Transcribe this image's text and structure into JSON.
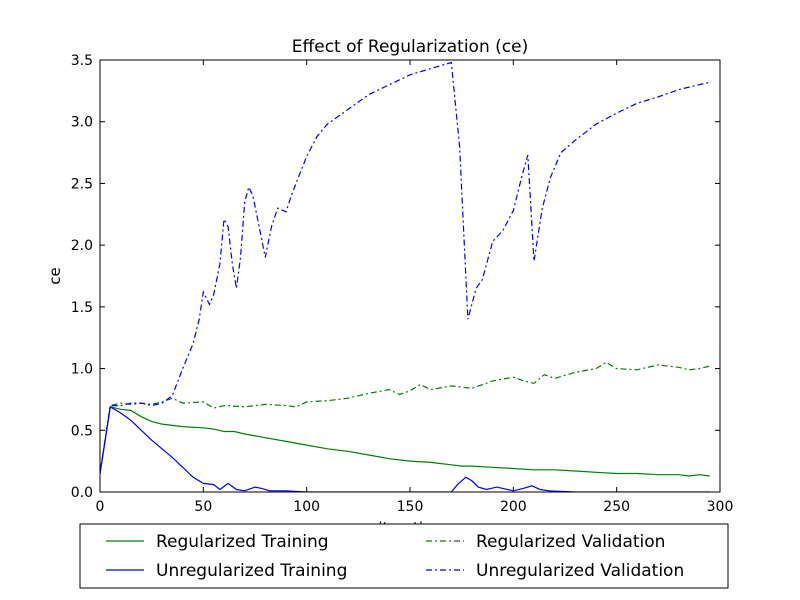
{
  "chart_data": {
    "type": "line",
    "title": "Effect of Regularization (ce)",
    "xlabel": "iteration",
    "ylabel": "ce",
    "xlim": [
      0,
      300
    ],
    "ylim": [
      0,
      3.5
    ],
    "xticks": [
      "0",
      "50",
      "100",
      "150",
      "200",
      "250",
      "300"
    ],
    "yticks": [
      "0.0",
      "0.5",
      "1.0",
      "1.5",
      "2.0",
      "2.5",
      "3.0",
      "3.5"
    ],
    "grid": false,
    "legend_position": "below",
    "series": [
      {
        "name": "Regularized Training",
        "color": "#008000",
        "style": "solid",
        "x": [
          0,
          5,
          10,
          15,
          20,
          25,
          30,
          40,
          50,
          55,
          60,
          65,
          70,
          80,
          90,
          100,
          110,
          120,
          130,
          140,
          150,
          160,
          170,
          175,
          180,
          190,
          200,
          210,
          220,
          230,
          240,
          250,
          260,
          270,
          280,
          285,
          290,
          295
        ],
        "y": [
          0.15,
          0.69,
          0.67,
          0.66,
          0.61,
          0.57,
          0.55,
          0.53,
          0.52,
          0.51,
          0.49,
          0.49,
          0.47,
          0.44,
          0.41,
          0.38,
          0.35,
          0.33,
          0.3,
          0.27,
          0.25,
          0.24,
          0.22,
          0.21,
          0.21,
          0.2,
          0.19,
          0.18,
          0.18,
          0.17,
          0.16,
          0.15,
          0.15,
          0.14,
          0.14,
          0.13,
          0.14,
          0.13
        ]
      },
      {
        "name": "Unregularized Training",
        "color": "#0000ff",
        "style": "solid",
        "x": [
          0,
          5,
          10,
          15,
          20,
          25,
          30,
          35,
          40,
          45,
          50,
          55,
          58,
          62,
          66,
          70,
          75,
          78,
          82,
          90,
          100,
          120,
          150,
          170,
          173,
          177,
          180,
          183,
          187,
          192,
          200,
          205,
          209,
          213,
          217,
          230,
          260,
          295
        ],
        "y": [
          0.15,
          0.69,
          0.64,
          0.58,
          0.5,
          0.42,
          0.35,
          0.28,
          0.2,
          0.12,
          0.07,
          0.06,
          0.02,
          0.07,
          0.02,
          0.01,
          0.04,
          0.03,
          0.01,
          0.01,
          0.0,
          0.0,
          0.0,
          0.0,
          0.06,
          0.12,
          0.09,
          0.04,
          0.02,
          0.04,
          0.01,
          0.03,
          0.05,
          0.02,
          0.01,
          0.0,
          0.0,
          0.0
        ]
      },
      {
        "name": "Regularized Validation",
        "color": "#008000",
        "style": "dashdot",
        "x": [
          0,
          5,
          10,
          15,
          20,
          25,
          30,
          35,
          40,
          50,
          55,
          60,
          70,
          80,
          90,
          95,
          100,
          110,
          120,
          130,
          140,
          145,
          150,
          155,
          160,
          170,
          180,
          190,
          200,
          205,
          210,
          215,
          220,
          230,
          240,
          245,
          250,
          260,
          270,
          280,
          285,
          290,
          295
        ],
        "y": [
          0.15,
          0.7,
          0.72,
          0.71,
          0.72,
          0.71,
          0.73,
          0.76,
          0.72,
          0.73,
          0.68,
          0.7,
          0.69,
          0.71,
          0.7,
          0.69,
          0.73,
          0.74,
          0.76,
          0.8,
          0.83,
          0.79,
          0.82,
          0.87,
          0.83,
          0.86,
          0.84,
          0.9,
          0.93,
          0.9,
          0.88,
          0.95,
          0.92,
          0.97,
          1.0,
          1.05,
          1.0,
          0.99,
          1.03,
          1.01,
          0.99,
          1.0,
          1.02
        ]
      },
      {
        "name": "Unregularized Validation",
        "color": "#0000ff",
        "style": "dashdot",
        "x": [
          0,
          5,
          10,
          15,
          20,
          25,
          30,
          35,
          40,
          45,
          48,
          50,
          53,
          55,
          58,
          60,
          62,
          64,
          66,
          68,
          70,
          72,
          74,
          77,
          80,
          83,
          86,
          90,
          93,
          96,
          100,
          105,
          110,
          120,
          130,
          140,
          150,
          160,
          170,
          174,
          178,
          182,
          185,
          190,
          195,
          200,
          204,
          207,
          210,
          214,
          218,
          223,
          230,
          240,
          250,
          260,
          270,
          280,
          290,
          295
        ],
        "y": [
          0.15,
          0.7,
          0.7,
          0.72,
          0.72,
          0.7,
          0.72,
          0.78,
          1.0,
          1.2,
          1.4,
          1.62,
          1.52,
          1.6,
          1.85,
          2.21,
          2.15,
          1.85,
          1.65,
          1.9,
          2.35,
          2.47,
          2.4,
          2.15,
          1.9,
          2.15,
          2.3,
          2.27,
          2.42,
          2.55,
          2.72,
          2.88,
          2.98,
          3.1,
          3.22,
          3.3,
          3.38,
          3.43,
          3.48,
          2.8,
          1.4,
          1.65,
          1.72,
          2.03,
          2.12,
          2.28,
          2.55,
          2.73,
          1.87,
          2.3,
          2.55,
          2.75,
          2.85,
          2.98,
          3.07,
          3.15,
          3.2,
          3.26,
          3.3,
          3.32
        ]
      }
    ]
  }
}
